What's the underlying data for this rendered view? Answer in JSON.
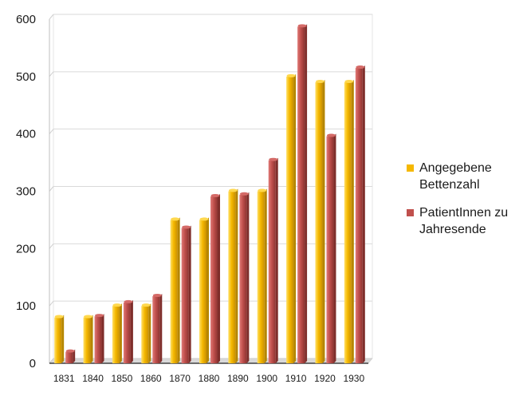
{
  "chart_data": {
    "type": "bar",
    "categories": [
      "1831",
      "1840",
      "1850",
      "1860",
      "1870",
      "1880",
      "1890",
      "1900",
      "1910",
      "1920",
      "1930"
    ],
    "series": [
      {
        "name": "Angegebene Bettenzahl",
        "color": "#f5b800",
        "values": [
          80,
          80,
          100,
          100,
          250,
          250,
          300,
          300,
          500,
          490,
          490
        ]
      },
      {
        "name": "PatientInnen zu Jahresende",
        "color": "#c0504d",
        "values": [
          20,
          82,
          106,
          117,
          236,
          291,
          294,
          354,
          587,
          396,
          515
        ]
      }
    ],
    "y_ticks": [
      "0",
      "100",
      "200",
      "300",
      "400",
      "500",
      "600"
    ],
    "ylim": [
      0,
      600
    ],
    "grid": true,
    "legend_position": "right"
  }
}
